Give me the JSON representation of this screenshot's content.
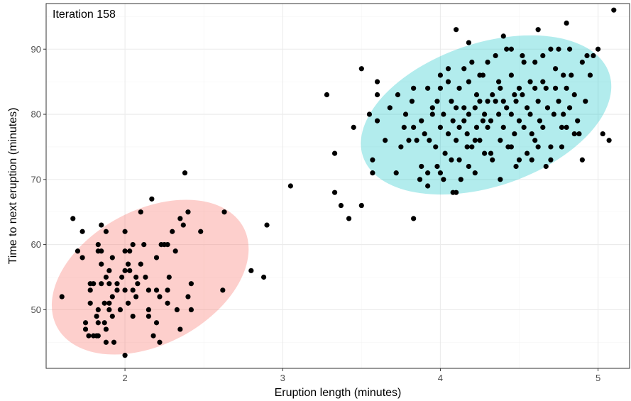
{
  "chart_data": {
    "type": "scatter",
    "annotation": "Iteration 158",
    "xlabel": "Eruption length (minutes)",
    "ylabel": "Time to next eruption (minutes)",
    "xlim": [
      1.5,
      5.2
    ],
    "ylim": [
      41,
      97
    ],
    "x_ticks": [
      2,
      3,
      4,
      5
    ],
    "y_ticks": [
      50,
      60,
      70,
      80,
      90
    ],
    "grid": true,
    "point_color": "#000000",
    "clusters": [
      {
        "center": [
          2.16,
          55.0
        ],
        "color": "#f8766d",
        "fill_opacity": 0.35
      },
      {
        "center": [
          4.29,
          79.9
        ],
        "color": "#00bfc4",
        "fill_opacity": 0.3
      }
    ],
    "points": [
      [
        1.6,
        52
      ],
      [
        1.67,
        64
      ],
      [
        1.7,
        59
      ],
      [
        1.73,
        62
      ],
      [
        1.73,
        58
      ],
      [
        1.75,
        48
      ],
      [
        1.75,
        47
      ],
      [
        1.77,
        46
      ],
      [
        1.78,
        53
      ],
      [
        1.78,
        54
      ],
      [
        1.78,
        51
      ],
      [
        1.8,
        54
      ],
      [
        1.8,
        46
      ],
      [
        1.82,
        49
      ],
      [
        1.82,
        46
      ],
      [
        1.83,
        60
      ],
      [
        1.83,
        59
      ],
      [
        1.83,
        50
      ],
      [
        1.83,
        48
      ],
      [
        1.83,
        46
      ],
      [
        1.85,
        63
      ],
      [
        1.85,
        59
      ],
      [
        1.85,
        57
      ],
      [
        1.85,
        54
      ],
      [
        1.87,
        51
      ],
      [
        1.87,
        48
      ],
      [
        1.88,
        62
      ],
      [
        1.88,
        47
      ],
      [
        1.88,
        45
      ],
      [
        1.88,
        55
      ],
      [
        1.9,
        56
      ],
      [
        1.9,
        54
      ],
      [
        1.9,
        51
      ],
      [
        1.9,
        50
      ],
      [
        1.92,
        58
      ],
      [
        1.92,
        52
      ],
      [
        1.92,
        49
      ],
      [
        1.93,
        45
      ],
      [
        1.95,
        53
      ],
      [
        1.95,
        54
      ],
      [
        1.97,
        50
      ],
      [
        1.98,
        55
      ],
      [
        2.0,
        56
      ],
      [
        2.0,
        53
      ],
      [
        2.0,
        59
      ],
      [
        2.0,
        62
      ],
      [
        2.0,
        43
      ],
      [
        2.02,
        57
      ],
      [
        2.02,
        51
      ],
      [
        2.03,
        59
      ],
      [
        2.03,
        56
      ],
      [
        2.05,
        60
      ],
      [
        2.05,
        53
      ],
      [
        2.05,
        49
      ],
      [
        2.07,
        55
      ],
      [
        2.07,
        52
      ],
      [
        2.08,
        54
      ],
      [
        2.1,
        65
      ],
      [
        2.1,
        57
      ],
      [
        2.12,
        60
      ],
      [
        2.15,
        53
      ],
      [
        2.15,
        50
      ],
      [
        2.15,
        49
      ],
      [
        2.13,
        55
      ],
      [
        2.17,
        67
      ],
      [
        2.18,
        46
      ],
      [
        2.2,
        58
      ],
      [
        2.2,
        53
      ],
      [
        2.2,
        48
      ],
      [
        2.22,
        52
      ],
      [
        2.22,
        45
      ],
      [
        2.23,
        60
      ],
      [
        2.25,
        60
      ],
      [
        2.27,
        60
      ],
      [
        2.27,
        53
      ],
      [
        2.27,
        51
      ],
      [
        2.28,
        55
      ],
      [
        2.3,
        62
      ],
      [
        2.32,
        59
      ],
      [
        2.33,
        50
      ],
      [
        2.35,
        64
      ],
      [
        2.35,
        47
      ],
      [
        2.37,
        63
      ],
      [
        2.38,
        71
      ],
      [
        2.4,
        65
      ],
      [
        2.4,
        52
      ],
      [
        2.42,
        54
      ],
      [
        2.42,
        50
      ],
      [
        2.48,
        62
      ],
      [
        2.62,
        53
      ],
      [
        2.63,
        65
      ],
      [
        2.8,
        56
      ],
      [
        2.88,
        55
      ],
      [
        2.9,
        63
      ],
      [
        3.05,
        69
      ],
      [
        3.28,
        83
      ],
      [
        3.33,
        74
      ],
      [
        3.33,
        68
      ],
      [
        3.37,
        66
      ],
      [
        3.42,
        64
      ],
      [
        3.45,
        78
      ],
      [
        3.5,
        87
      ],
      [
        3.5,
        66
      ],
      [
        3.55,
        80
      ],
      [
        3.57,
        71
      ],
      [
        3.57,
        73
      ],
      [
        3.6,
        85
      ],
      [
        3.6,
        83
      ],
      [
        3.6,
        79
      ],
      [
        3.65,
        76
      ],
      [
        3.68,
        81
      ],
      [
        3.72,
        71
      ],
      [
        3.73,
        83
      ],
      [
        3.75,
        75
      ],
      [
        3.77,
        78
      ],
      [
        3.78,
        80
      ],
      [
        3.8,
        76
      ],
      [
        3.82,
        82
      ],
      [
        3.83,
        64
      ],
      [
        3.83,
        84
      ],
      [
        3.83,
        78
      ],
      [
        3.85,
        76
      ],
      [
        3.87,
        70
      ],
      [
        3.88,
        79
      ],
      [
        3.9,
        77
      ],
      [
        3.92,
        84
      ],
      [
        3.92,
        71
      ],
      [
        3.92,
        69
      ],
      [
        3.93,
        76
      ],
      [
        3.95,
        81
      ],
      [
        3.97,
        75
      ],
      [
        3.98,
        82
      ],
      [
        4.0,
        86
      ],
      [
        4.0,
        84
      ],
      [
        4.0,
        78
      ],
      [
        4.0,
        71
      ],
      [
        4.02,
        80
      ],
      [
        4.02,
        70
      ],
      [
        4.03,
        74
      ],
      [
        4.05,
        77
      ],
      [
        4.05,
        85
      ],
      [
        4.07,
        82
      ],
      [
        4.07,
        73
      ],
      [
        4.08,
        68
      ],
      [
        4.08,
        79
      ],
      [
        4.1,
        93
      ],
      [
        4.1,
        81
      ],
      [
        4.1,
        76
      ],
      [
        4.1,
        68
      ],
      [
        4.12,
        84
      ],
      [
        4.12,
        78
      ],
      [
        4.13,
        70
      ],
      [
        4.15,
        81
      ],
      [
        4.15,
        79
      ],
      [
        4.17,
        77
      ],
      [
        4.17,
        75
      ],
      [
        4.18,
        91
      ],
      [
        4.18,
        85
      ],
      [
        4.18,
        80
      ],
      [
        4.18,
        72
      ],
      [
        4.2,
        88
      ],
      [
        4.2,
        75
      ],
      [
        4.22,
        81
      ],
      [
        4.22,
        76
      ],
      [
        4.22,
        71
      ],
      [
        4.23,
        83
      ],
      [
        4.23,
        78
      ],
      [
        4.25,
        82
      ],
      [
        4.25,
        76
      ],
      [
        4.27,
        86
      ],
      [
        4.27,
        79
      ],
      [
        4.28,
        74
      ],
      [
        4.28,
        80
      ],
      [
        4.3,
        88
      ],
      [
        4.3,
        82
      ],
      [
        4.3,
        78
      ],
      [
        4.32,
        79
      ],
      [
        4.32,
        74
      ],
      [
        4.33,
        83
      ],
      [
        4.33,
        73
      ],
      [
        4.35,
        89
      ],
      [
        4.35,
        82
      ],
      [
        4.37,
        85
      ],
      [
        4.37,
        80
      ],
      [
        4.38,
        76
      ],
      [
        4.38,
        70
      ],
      [
        4.4,
        92
      ],
      [
        4.4,
        82
      ],
      [
        4.4,
        78
      ],
      [
        4.42,
        90
      ],
      [
        4.42,
        81
      ],
      [
        4.43,
        75
      ],
      [
        4.45,
        90
      ],
      [
        4.45,
        86
      ],
      [
        4.45,
        80
      ],
      [
        4.47,
        83
      ],
      [
        4.47,
        77
      ],
      [
        4.48,
        82
      ],
      [
        4.48,
        72
      ],
      [
        4.5,
        84
      ],
      [
        4.5,
        79
      ],
      [
        4.5,
        73
      ],
      [
        4.52,
        89
      ],
      [
        4.52,
        83
      ],
      [
        4.53,
        78
      ],
      [
        4.55,
        81
      ],
      [
        4.55,
        74
      ],
      [
        4.57,
        85
      ],
      [
        4.57,
        80
      ],
      [
        4.58,
        77
      ],
      [
        4.58,
        73
      ],
      [
        4.6,
        88
      ],
      [
        4.6,
        84
      ],
      [
        4.6,
        76
      ],
      [
        4.62,
        93
      ],
      [
        4.62,
        82
      ],
      [
        4.63,
        79
      ],
      [
        4.65,
        89
      ],
      [
        4.65,
        85
      ],
      [
        4.65,
        78
      ],
      [
        4.67,
        84
      ],
      [
        4.67,
        72
      ],
      [
        4.68,
        81
      ],
      [
        4.7,
        90
      ],
      [
        4.7,
        75
      ],
      [
        4.7,
        73
      ],
      [
        4.72,
        80
      ],
      [
        4.73,
        87
      ],
      [
        4.73,
        84
      ],
      [
        4.75,
        90
      ],
      [
        4.75,
        82
      ],
      [
        4.77,
        78
      ],
      [
        4.77,
        75
      ],
      [
        4.78,
        86
      ],
      [
        4.78,
        80
      ],
      [
        4.8,
        94
      ],
      [
        4.8,
        84
      ],
      [
        4.8,
        78
      ],
      [
        4.82,
        90
      ],
      [
        4.82,
        81
      ],
      [
        4.83,
        86
      ],
      [
        4.85,
        83
      ],
      [
        4.87,
        79
      ],
      [
        4.88,
        77
      ],
      [
        4.9,
        88
      ],
      [
        4.9,
        73
      ],
      [
        4.92,
        82
      ],
      [
        4.93,
        89
      ],
      [
        4.95,
        86
      ],
      [
        4.97,
        89
      ],
      [
        5.0,
        90
      ],
      [
        5.03,
        77
      ],
      [
        5.07,
        76
      ],
      [
        5.1,
        96
      ],
      [
        4.53,
        88
      ],
      [
        4.15,
        87
      ],
      [
        4.38,
        84
      ],
      [
        3.95,
        80
      ],
      [
        4.45,
        75
      ],
      [
        3.88,
        72
      ],
      [
        4.25,
        86
      ],
      [
        4.05,
        87
      ],
      [
        3.98,
        72
      ],
      [
        4.12,
        73
      ],
      [
        4.62,
        75
      ],
      [
        4.85,
        77
      ]
    ]
  }
}
